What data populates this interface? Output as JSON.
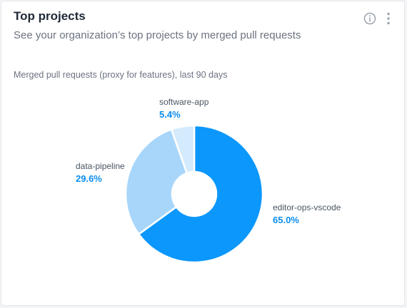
{
  "card": {
    "title": "Top projects",
    "subtitle": "See your organization’s top projects by merged pull requests",
    "info_icon": "info-icon",
    "menu_icon": "kebab-menu-icon"
  },
  "chart_caption": "Merged pull requests (proxy for features), last 90 days",
  "chart_data": {
    "type": "pie",
    "categories": [
      "editor-ops-vscode",
      "data-pipeline",
      "software-app"
    ],
    "values": [
      65.0,
      29.6,
      5.4
    ],
    "value_labels": [
      "65.0%",
      "29.6%",
      "5.4%"
    ],
    "colors": [
      "#0b97fb",
      "#a8d6fb",
      "#d4ebfd"
    ],
    "donut": true,
    "title": "",
    "legend": "none"
  }
}
